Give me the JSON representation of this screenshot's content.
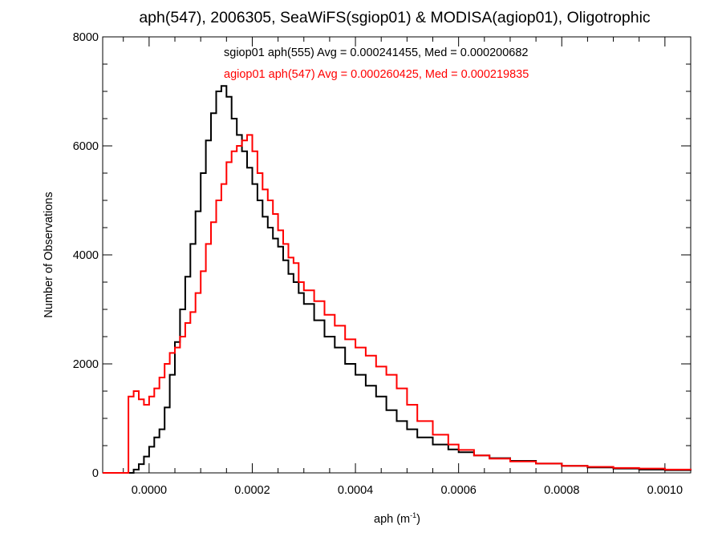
{
  "chart_data": {
    "type": "line",
    "title": "aph(547), 2006305, SeaWiFS(sgiop01) & MODISA(agiop01), Oligotrophic",
    "xlabel": "aph (m",
    "xlabel_exponent": "-1",
    "xlabel_close": ")",
    "ylabel": "Number of Observations",
    "xlim": [
      -9e-05,
      0.00105
    ],
    "ylim": [
      0,
      8000
    ],
    "x_ticks": [
      0.0,
      0.0002,
      0.0004,
      0.0006,
      0.0008,
      0.001
    ],
    "x_tick_labels": [
      "0.0000",
      "0.0002",
      "0.0004",
      "0.0006",
      "0.0008",
      "0.0010"
    ],
    "y_ticks": [
      0,
      2000,
      4000,
      6000,
      8000
    ],
    "y_tick_labels": [
      "0",
      "2000",
      "4000",
      "6000",
      "8000"
    ],
    "grid": false,
    "step": true,
    "annotations": [
      {
        "text": "sgiop01 aph(555) Avg = 0.000241455, Med = 0.000200682",
        "color": "#000000"
      },
      {
        "text": "agiop01 aph(547) Avg = 0.000260425, Med = 0.000219835",
        "color": "#ff0000"
      }
    ],
    "series": [
      {
        "color": "#000000",
        "x": [
          -9e-05,
          -4e-05,
          -3e-05,
          -2e-05,
          -1e-05,
          0.0,
          1e-05,
          2e-05,
          3e-05,
          4e-05,
          5e-05,
          6e-05,
          7e-05,
          8e-05,
          9e-05,
          0.0001,
          0.00011,
          0.00012,
          0.00013,
          0.00014,
          0.00015,
          0.00016,
          0.00017,
          0.00018,
          0.00019,
          0.0002,
          0.00021,
          0.00022,
          0.00023,
          0.00024,
          0.00025,
          0.00026,
          0.00027,
          0.00028,
          0.00029,
          0.0003,
          0.00032,
          0.00034,
          0.00036,
          0.00038,
          0.0004,
          0.00042,
          0.00044,
          0.00046,
          0.00048,
          0.0005,
          0.00052,
          0.00055,
          0.00058,
          0.0006,
          0.00063,
          0.00066,
          0.0007,
          0.00075,
          0.0008,
          0.00085,
          0.0009,
          0.00095,
          0.001,
          0.00105
        ],
        "y": [
          0,
          0,
          60,
          160,
          300,
          480,
          650,
          800,
          1200,
          1800,
          2400,
          3000,
          3600,
          4200,
          4800,
          5500,
          6100,
          6600,
          7000,
          7100,
          6900,
          6500,
          6200,
          5900,
          5600,
          5300,
          5000,
          4700,
          4500,
          4300,
          4150,
          3900,
          3650,
          3500,
          3300,
          3100,
          2800,
          2500,
          2300,
          2000,
          1800,
          1600,
          1400,
          1150,
          950,
          800,
          650,
          520,
          430,
          380,
          320,
          270,
          220,
          170,
          130,
          100,
          80,
          60,
          50,
          40
        ]
      },
      {
        "color": "#ff0000",
        "x": [
          -9e-05,
          -4.5e-05,
          -4e-05,
          -3e-05,
          -2e-05,
          -1e-05,
          0.0,
          1e-05,
          2e-05,
          3e-05,
          4e-05,
          5e-05,
          6e-05,
          7e-05,
          8e-05,
          9e-05,
          0.0001,
          0.00011,
          0.00012,
          0.00013,
          0.00014,
          0.00015,
          0.00016,
          0.00017,
          0.00018,
          0.00019,
          0.0002,
          0.00021,
          0.00022,
          0.00023,
          0.00024,
          0.00025,
          0.00026,
          0.00027,
          0.00028,
          0.00029,
          0.0003,
          0.00032,
          0.00034,
          0.00036,
          0.00038,
          0.0004,
          0.00042,
          0.00044,
          0.00046,
          0.00048,
          0.0005,
          0.00052,
          0.00055,
          0.00058,
          0.0006,
          0.00063,
          0.00066,
          0.0007,
          0.00075,
          0.0008,
          0.00085,
          0.0009,
          0.00095,
          0.001,
          0.00105
        ],
        "y": [
          0,
          0,
          1400,
          1500,
          1350,
          1250,
          1400,
          1550,
          1750,
          2000,
          2200,
          2300,
          2500,
          2750,
          2950,
          3300,
          3700,
          4200,
          4600,
          5000,
          5300,
          5700,
          5900,
          6000,
          6100,
          6200,
          5900,
          5500,
          5200,
          5000,
          4750,
          4450,
          4200,
          3950,
          3850,
          3500,
          3350,
          3150,
          2900,
          2700,
          2450,
          2300,
          2150,
          1950,
          1800,
          1550,
          1250,
          950,
          700,
          520,
          420,
          320,
          260,
          210,
          170,
          130,
          110,
          90,
          80,
          60,
          50
        ]
      }
    ]
  }
}
